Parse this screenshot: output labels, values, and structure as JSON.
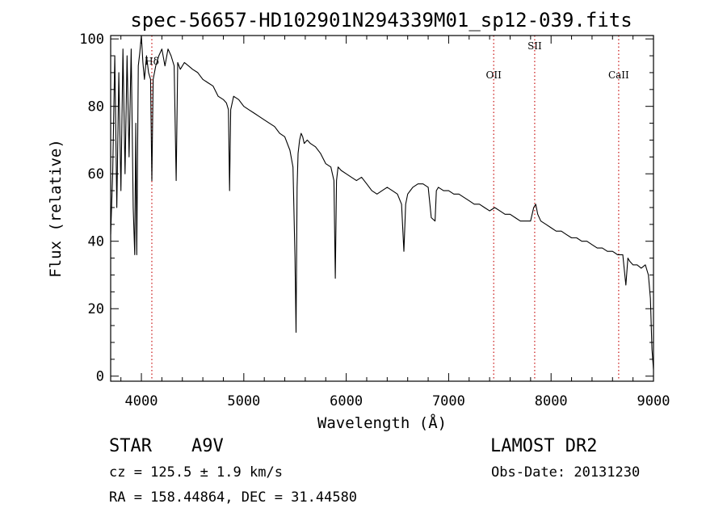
{
  "chart_data": {
    "type": "line",
    "title": "spec-56657-HD102901N294339M01_sp12-039.fits",
    "xlabel": "Wavelength (Å)",
    "ylabel": "Flux (relative)",
    "xlim": [
      3700,
      9000
    ],
    "ylim": [
      -1.5,
      101
    ],
    "xticks": [
      4000,
      5000,
      6000,
      7000,
      8000,
      9000
    ],
    "xticklabels": [
      "4000",
      "5000",
      "6000",
      "7000",
      "8000",
      "9000"
    ],
    "yticks": [
      0,
      20,
      40,
      60,
      80,
      100
    ],
    "yticklabels": [
      "0",
      "20",
      "40",
      "60",
      "80",
      "100"
    ],
    "grid": false,
    "series": [
      {
        "name": "",
        "color": "#000000",
        "x": [
          3700,
          3720,
          3740,
          3760,
          3780,
          3800,
          3820,
          3840,
          3860,
          3880,
          3900,
          3920,
          3935,
          3945,
          3955,
          3970,
          3985,
          4000,
          4015,
          4030,
          4050,
          4070,
          4090,
          4102,
          4115,
          4140,
          4170,
          4200,
          4230,
          4260,
          4290,
          4320,
          4340,
          4355,
          4380,
          4420,
          4460,
          4500,
          4550,
          4600,
          4650,
          4700,
          4750,
          4800,
          4830,
          4850,
          4861,
          4872,
          4900,
          4950,
          5000,
          5050,
          5100,
          5150,
          5200,
          5250,
          5300,
          5350,
          5400,
          5450,
          5480,
          5500,
          5510,
          5520,
          5530,
          5545,
          5560,
          5575,
          5590,
          5620,
          5650,
          5700,
          5750,
          5800,
          5850,
          5880,
          5893,
          5905,
          5920,
          5950,
          6000,
          6050,
          6100,
          6150,
          6200,
          6250,
          6300,
          6350,
          6400,
          6450,
          6500,
          6540,
          6563,
          6580,
          6600,
          6650,
          6700,
          6750,
          6800,
          6830,
          6867,
          6880,
          6900,
          6950,
          7000,
          7050,
          7100,
          7150,
          7200,
          7250,
          7300,
          7350,
          7400,
          7450,
          7500,
          7550,
          7600,
          7650,
          7700,
          7750,
          7800,
          7830,
          7850,
          7870,
          7900,
          7950,
          8000,
          8050,
          8100,
          8150,
          8200,
          8250,
          8300,
          8350,
          8400,
          8450,
          8500,
          8550,
          8600,
          8650,
          8700,
          8730,
          8750,
          8770,
          8800,
          8840,
          8880,
          8920,
          8950,
          8970,
          8985,
          9000
        ],
        "y": [
          42,
          60,
          95,
          50,
          90,
          55,
          97,
          60,
          95,
          65,
          97,
          50,
          36,
          75,
          36,
          92,
          96,
          101,
          93,
          88,
          95,
          90,
          88,
          58,
          88,
          92,
          95,
          97,
          92,
          97,
          95,
          92,
          58,
          93,
          91,
          93,
          92,
          91,
          90,
          88,
          87,
          86,
          83,
          82,
          81,
          79,
          55,
          79,
          83,
          82,
          80,
          79,
          78,
          77,
          76,
          75,
          74,
          72,
          71,
          67,
          62,
          35,
          13,
          56,
          66,
          70,
          72,
          71,
          69,
          70,
          69,
          68,
          66,
          63,
          62,
          58,
          29,
          58,
          62,
          61,
          60,
          59,
          58,
          59,
          57,
          55,
          54,
          55,
          56,
          55,
          54,
          51,
          37,
          51,
          54,
          56,
          57,
          57,
          56,
          47,
          46,
          55,
          56,
          55,
          55,
          54,
          54,
          53,
          52,
          51,
          51,
          50,
          49,
          50,
          49,
          48,
          48,
          47,
          46,
          46,
          46,
          50,
          51,
          48,
          46,
          45,
          44,
          43,
          43,
          42,
          41,
          41,
          40,
          40,
          39,
          38,
          38,
          37,
          37,
          36,
          36,
          27,
          35,
          34,
          33,
          33,
          32,
          33,
          30,
          23,
          8,
          2
        ]
      }
    ],
    "line_markers": [
      {
        "label": "Hδ",
        "x": 4102,
        "color": "#cc2222"
      },
      {
        "label": "OII",
        "x": 7440,
        "color": "#cc2222"
      },
      {
        "label": "SII",
        "x": 7840,
        "color": "#cc2222"
      },
      {
        "label": "CaII",
        "x": 8660,
        "color": "#cc2222"
      }
    ]
  },
  "footer": {
    "class_label": "STAR",
    "subclass": "A9V",
    "survey": "LAMOST DR2",
    "redshift": "cz = 125.5 ± 1.9 km/s",
    "obs_date": "Obs-Date: 20131230",
    "coords": "RA = 158.44864, DEC =  31.44580"
  }
}
